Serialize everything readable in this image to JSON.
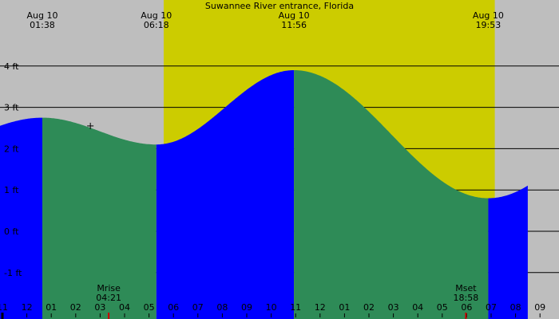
{
  "chart_data": {
    "type": "area",
    "title": "Suwannee River entrance, Florida",
    "x_unit": "hour",
    "y_unit": "ft",
    "x_range": [
      -1.3,
      21.5
    ],
    "y_range": [
      -2.0,
      4.0
    ],
    "y_ticks": [
      {
        "value": 4,
        "label": "4 ft"
      },
      {
        "value": 3,
        "label": "3 ft"
      },
      {
        "value": 2,
        "label": "2 ft"
      },
      {
        "value": 1,
        "label": "1 ft"
      },
      {
        "value": 0,
        "label": "0 ft"
      },
      {
        "value": -1,
        "label": "-1 ft"
      }
    ],
    "hour_labels": [
      "11",
      "12",
      "01",
      "02",
      "03",
      "04",
      "05",
      "06",
      "07",
      "08",
      "09",
      "10",
      "11",
      "12",
      "01",
      "02",
      "03",
      "04",
      "05",
      "06",
      "07",
      "08",
      "09"
    ],
    "daylight": {
      "start": 6.6,
      "end": 20.15
    },
    "tide_series": [
      {
        "time": 1.633,
        "height": 2.75,
        "type": "high"
      },
      {
        "time": 6.3,
        "height": 2.1,
        "type": "low"
      },
      {
        "time": 11.933,
        "height": 3.9,
        "type": "high"
      },
      {
        "time": 19.883,
        "height": 0.8,
        "type": "low"
      }
    ],
    "events": [
      {
        "date": "Aug 10",
        "time": "01:38",
        "hour": 1.633
      },
      {
        "date": "Aug 10",
        "time": "06:18",
        "hour": 6.3
      },
      {
        "date": "Aug 10",
        "time": "11:56",
        "hour": 11.933
      },
      {
        "date": "Aug 10",
        "time": "19:53",
        "hour": 19.883
      }
    ],
    "moon_events": [
      {
        "label": "Mrise",
        "time": "04:21",
        "hour": 4.35
      },
      {
        "label": "Mset",
        "time": "18:58",
        "hour": 18.967
      }
    ],
    "current_time_hour": 0.0,
    "marker": {
      "hour": 3.6,
      "height": 2.55
    },
    "colors": {
      "night": "#bebebe",
      "day": "#cccc00",
      "rising": "#0000ff",
      "falling": "#2e8b57",
      "grid": "#000000",
      "moon_tick": "#cc0000"
    }
  }
}
